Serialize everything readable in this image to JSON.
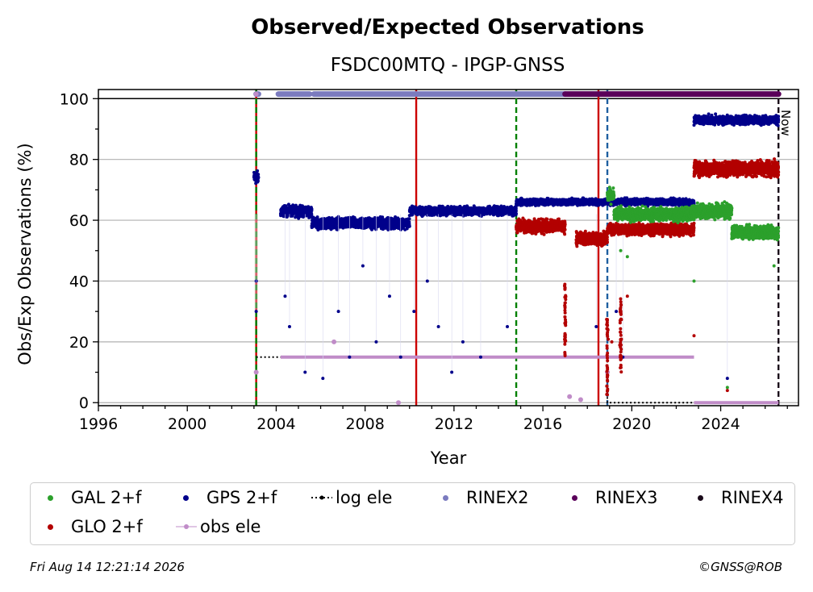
{
  "title": "Observed/Expected Observations",
  "subtitle": "FSDC00MTQ - IPGP-GNSS",
  "footer_left": "Fri Aug 14 12:21:14 2026",
  "footer_right": "©GNSS@ROB",
  "now_label": "Now",
  "colors": {
    "gal": "#2ca02c",
    "gps": "#00008b",
    "glo": "#b30000",
    "rinex2": "#7b7bbf",
    "rinex3": "#5a005a",
    "rinex4": "#1a0a1a",
    "obs_ele": "#c08cc8",
    "red_line": "#cc0000",
    "green_line": "#008000",
    "blue_line": "#1f5fa0"
  },
  "chart_data": {
    "type": "scatter",
    "xlabel": "Year",
    "ylabel": "Obs/Exp Observations (%)",
    "xlim": [
      1996,
      2027.5
    ],
    "ylim": [
      -1,
      103
    ],
    "xticks": [
      1996,
      2000,
      2004,
      2008,
      2012,
      2016,
      2020,
      2024
    ],
    "yticks": [
      0,
      20,
      40,
      60,
      80,
      100
    ],
    "grid": "horizontal",
    "vertical_lines": [
      {
        "x": 2003.1,
        "color": "red_line",
        "style": "solid"
      },
      {
        "x": 2003.1,
        "color": "green_line",
        "style": "dashed"
      },
      {
        "x": 2010.3,
        "color": "red_line",
        "style": "solid"
      },
      {
        "x": 2014.8,
        "color": "green_line",
        "style": "dashed"
      },
      {
        "x": 2018.5,
        "color": "red_line",
        "style": "solid"
      },
      {
        "x": 2018.9,
        "color": "blue_line",
        "style": "dashed"
      },
      {
        "x": 2026.6,
        "color": "rinex4",
        "style": "dashed"
      }
    ],
    "rinex_bars": [
      {
        "name": "RINEX2",
        "x_start": 2003.1,
        "x_end": 2003.2,
        "y": 101.5
      },
      {
        "name": "RINEX2",
        "x_start": 2004.1,
        "x_end": 2005.5,
        "y": 101.5
      },
      {
        "name": "RINEX2",
        "x_start": 2005.7,
        "x_end": 2017.0,
        "y": 101.5
      },
      {
        "name": "RINEX3",
        "x_start": 2017.0,
        "x_end": 2026.6,
        "y": 101.5
      }
    ],
    "series": [
      {
        "name": "GAL 2+f",
        "color": "gal",
        "segments": [
          {
            "x_start": 2018.9,
            "x_end": 2019.2,
            "y_mean": 68,
            "y_spread": 3
          },
          {
            "x_start": 2019.2,
            "x_end": 2022.8,
            "y_mean": 62,
            "y_spread": 3
          },
          {
            "x_start": 2022.8,
            "x_end": 2024.5,
            "y_mean": 63,
            "y_spread": 3.5
          },
          {
            "x_start": 2024.5,
            "x_end": 2026.6,
            "y_mean": 56,
            "y_spread": 3
          }
        ],
        "outliers": [
          [
            2019.5,
            50
          ],
          [
            2019.8,
            48
          ],
          [
            2022.8,
            40
          ],
          [
            2024.3,
            5
          ],
          [
            2026.4,
            45
          ]
        ]
      },
      {
        "name": "GPS 2+f",
        "color": "gps",
        "segments": [
          {
            "x_start": 2003.0,
            "x_end": 2003.2,
            "y_mean": 74,
            "y_spread": 3
          },
          {
            "x_start": 2004.2,
            "x_end": 2005.6,
            "y_mean": 63,
            "y_spread": 2.5
          },
          {
            "x_start": 2005.6,
            "x_end": 2010.0,
            "y_mean": 59,
            "y_spread": 2.5
          },
          {
            "x_start": 2010.0,
            "x_end": 2014.8,
            "y_mean": 63,
            "y_spread": 2
          },
          {
            "x_start": 2014.8,
            "x_end": 2022.8,
            "y_mean": 66,
            "y_spread": 1.5
          },
          {
            "x_start": 2022.8,
            "x_end": 2026.6,
            "y_mean": 93,
            "y_spread": 2
          }
        ],
        "outliers": [
          [
            2003.1,
            40
          ],
          [
            2003.1,
            30
          ],
          [
            2004.4,
            35
          ],
          [
            2004.6,
            25
          ],
          [
            2005.3,
            10
          ],
          [
            2006.1,
            8
          ],
          [
            2006.8,
            30
          ],
          [
            2007.3,
            15
          ],
          [
            2007.9,
            45
          ],
          [
            2008.5,
            20
          ],
          [
            2009.1,
            35
          ],
          [
            2009.6,
            15
          ],
          [
            2010.2,
            30
          ],
          [
            2010.8,
            40
          ],
          [
            2011.3,
            25
          ],
          [
            2011.9,
            10
          ],
          [
            2012.4,
            20
          ],
          [
            2013.2,
            15
          ],
          [
            2014.4,
            25
          ],
          [
            2018.4,
            25
          ],
          [
            2019.3,
            30
          ],
          [
            2019.6,
            15
          ],
          [
            2024.3,
            8
          ]
        ]
      },
      {
        "name": "GLO 2+f",
        "color": "glo",
        "segments": [
          {
            "x_start": 2014.8,
            "x_end": 2017.0,
            "y_mean": 58,
            "y_spread": 3
          },
          {
            "x_start": 2017.5,
            "x_end": 2018.9,
            "y_mean": 54,
            "y_spread": 3
          },
          {
            "x_start": 2018.9,
            "x_end": 2022.8,
            "y_mean": 57,
            "y_spread": 2.5
          },
          {
            "x_start": 2022.8,
            "x_end": 2026.6,
            "y_mean": 77,
            "y_spread": 3.5
          }
        ],
        "spikes": [
          [
            2017.0,
            15,
            40
          ],
          [
            2018.9,
            2,
            28
          ],
          [
            2019.5,
            10,
            35
          ]
        ],
        "outliers": [
          [
            2019.1,
            20
          ],
          [
            2019.8,
            35
          ],
          [
            2022.8,
            22
          ],
          [
            2024.3,
            4
          ]
        ]
      },
      {
        "name": "obs ele",
        "color": "obs_ele",
        "segments": [
          {
            "x_start": 2004.2,
            "x_end": 2022.8,
            "y_mean": 15,
            "y_spread": 0.3
          },
          {
            "x_start": 2022.8,
            "x_end": 2026.6,
            "y_mean": 0,
            "y_spread": 0.1
          }
        ],
        "outliers": [
          [
            2003.1,
            10
          ],
          [
            2003.1,
            101.5
          ],
          [
            2006.6,
            20
          ],
          [
            2009.5,
            0
          ],
          [
            2017.2,
            2
          ],
          [
            2017.7,
            1
          ],
          [
            2018.9,
            10
          ]
        ]
      },
      {
        "name": "log ele",
        "color": "rinex4",
        "steps": [
          [
            2003.1,
            15
          ],
          [
            2018.9,
            15
          ],
          [
            2018.9,
            0
          ],
          [
            2026.6,
            0
          ]
        ]
      }
    ],
    "legend": {
      "position": "bottom",
      "entries": [
        "GAL 2+f",
        "GPS 2+f",
        "log ele",
        "RINEX2",
        "RINEX3",
        "RINEX4",
        "GLO 2+f",
        "obs ele"
      ]
    }
  }
}
